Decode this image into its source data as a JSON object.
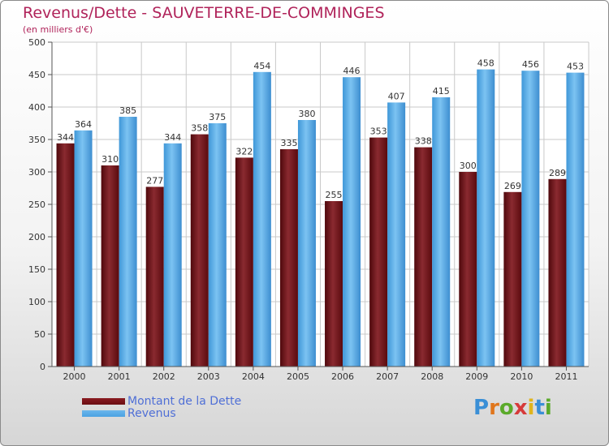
{
  "title": "Revenus/Dette - SAUVETERRE-DE-COMMINGES",
  "subtitle": "(en milliers d'€)",
  "colors": {
    "dette": "#6b0d12",
    "revenus": "#4ba2e2",
    "title": "#b0235a",
    "legend_text": "#4f6fd6"
  },
  "legend": [
    {
      "label": "Montant de la Dette",
      "color": "#6b0d12"
    },
    {
      "label": "Revenus",
      "color": "#4ba2e2"
    }
  ],
  "logo": {
    "letters": [
      "P",
      "r",
      "o",
      "x",
      "i",
      "t",
      "i"
    ],
    "colors": [
      "#3a8fd6",
      "#e0761c",
      "#5aaa2a",
      "#d63a3a",
      "#e0b41c",
      "#3a8fd6",
      "#5aaa2a"
    ]
  },
  "chart_data": {
    "type": "bar",
    "categories": [
      "2000",
      "2001",
      "2002",
      "2003",
      "2004",
      "2005",
      "2006",
      "2007",
      "2008",
      "2009",
      "2010",
      "2011"
    ],
    "series": [
      {
        "name": "Montant de la Dette",
        "values": [
          344,
          310,
          277,
          358,
          322,
          335,
          255,
          353,
          338,
          300,
          269,
          289
        ]
      },
      {
        "name": "Revenus",
        "values": [
          364,
          385,
          344,
          375,
          454,
          380,
          446,
          407,
          415,
          458,
          456,
          453
        ]
      }
    ],
    "yticks": [
      "0",
      "50",
      "100",
      "150",
      "200",
      "250",
      "300",
      "350",
      "400",
      "450",
      "500"
    ],
    "ylim": [
      0,
      500
    ],
    "grid": true,
    "legend_position": "bottom-left"
  }
}
